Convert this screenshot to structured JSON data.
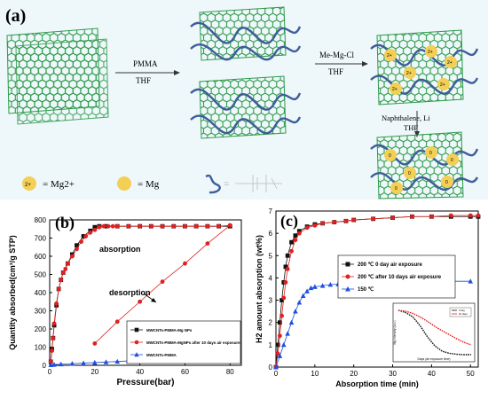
{
  "panel_a": {
    "label": "(a)",
    "step1_top": "PMMA",
    "step1_bottom": "THF",
    "step2_top": "Me-Mg-Cl",
    "step2_bottom": "THF",
    "step3_top": "Naphthalene, Li",
    "step3_bottom": "THF",
    "legend_ion_symbol": "2+",
    "legend_ion_text": "= Mg2+",
    "legend_mg_text": "= Mg",
    "tube_ion_symbol": "2+",
    "tube_metal_symbol": "0"
  },
  "colors": {
    "tube": "#2e9a4a",
    "polymer": "#3d5d9a",
    "ion": "#f3cf55",
    "red": "#e02020",
    "blue": "#1f4fe0",
    "black": "#111111"
  },
  "chart_data": [
    {
      "type": "line",
      "panel_label": "(b)",
      "xlabel": "Pressure(bar)",
      "ylabel": "Quantity absorbed(cm³/g STP)",
      "xlim": [
        0,
        85
      ],
      "ylim": [
        0,
        800
      ],
      "xticks": [
        0,
        20,
        40,
        60,
        80
      ],
      "yticks": [
        0,
        100,
        200,
        300,
        400,
        500,
        600,
        700,
        800
      ],
      "annotations": [
        "absorption",
        "desorption"
      ],
      "legend_position": "bottom-right",
      "series": [
        {
          "name": "MWCNTs-PMMA-Mg NPs",
          "marker": "square",
          "color": "#111111",
          "x": [
            0.5,
            1,
            1.5,
            2,
            3,
            4,
            5,
            6,
            8,
            10,
            12,
            15,
            18,
            20,
            22,
            25,
            30,
            35,
            40,
            45,
            50,
            55,
            60,
            65,
            70,
            75,
            80
          ],
          "y": [
            20,
            90,
            150,
            220,
            330,
            420,
            470,
            510,
            560,
            610,
            660,
            710,
            740,
            760,
            765,
            765,
            765,
            765,
            765,
            765,
            765,
            765,
            765,
            765,
            765,
            765,
            765
          ]
        },
        {
          "name": "MWCNTs-PMMA-MgNPs after 10 days air exposure",
          "marker": "circle",
          "color": "#e02020",
          "x": [
            0.5,
            1,
            1.5,
            2,
            3,
            4,
            5,
            6,
            7,
            8,
            10,
            12,
            14,
            16,
            18,
            20,
            22,
            24,
            26,
            28,
            30,
            35,
            40,
            45,
            50,
            55,
            60,
            65,
            70,
            75,
            80,
            20,
            30,
            40,
            50,
            60,
            70,
            80
          ],
          "y": [
            20,
            80,
            150,
            230,
            340,
            420,
            470,
            510,
            530,
            560,
            600,
            640,
            680,
            710,
            730,
            745,
            760,
            765,
            765,
            765,
            765,
            765,
            765,
            765,
            765,
            765,
            765,
            765,
            765,
            765,
            770,
            120,
            240,
            350,
            460,
            560,
            670,
            770
          ]
        },
        {
          "name": "MWCNTs-PMMA",
          "marker": "triangle",
          "color": "#1f4fe0",
          "x": [
            0.5,
            2,
            5,
            10,
            15,
            20,
            25,
            30,
            35,
            40,
            45,
            50,
            55,
            60,
            65,
            70,
            75,
            80
          ],
          "y": [
            2,
            4,
            6,
            9,
            12,
            15,
            18,
            21,
            24,
            27,
            30,
            33,
            36,
            39,
            42,
            45,
            48,
            55
          ]
        }
      ]
    },
    {
      "type": "line",
      "panel_label": "(c)",
      "xlabel": "Absorption time (min)",
      "ylabel": "H2 amount absorption (wt%)",
      "xlim": [
        0,
        52
      ],
      "ylim": [
        0,
        7
      ],
      "xticks": [
        0,
        10,
        20,
        30,
        40,
        50
      ],
      "yticks": [
        0,
        1,
        2,
        3,
        4,
        5,
        6,
        7
      ],
      "legend_position": "center-right",
      "series": [
        {
          "name": "200 ℃ 0 day air exposure",
          "marker": "square",
          "color": "#111111",
          "x": [
            0,
            0.5,
            1,
            1.5,
            2,
            2.5,
            3,
            4,
            5,
            6,
            8,
            10,
            12,
            15,
            18,
            20,
            25,
            30,
            35,
            40,
            45,
            50,
            52
          ],
          "y": [
            0,
            1.0,
            2.0,
            3.0,
            3.8,
            4.5,
            5.0,
            5.6,
            5.9,
            6.1,
            6.3,
            6.4,
            6.45,
            6.5,
            6.55,
            6.6,
            6.65,
            6.7,
            6.75,
            6.75,
            6.75,
            6.75,
            6.75
          ]
        },
        {
          "name": "200 ℃ after 10 days air exposure",
          "marker": "circle",
          "color": "#e02020",
          "x": [
            0,
            0.5,
            1,
            1.5,
            2,
            2.5,
            3,
            4,
            5,
            6,
            8,
            10,
            12,
            15,
            18,
            20,
            25,
            30,
            35,
            40,
            45,
            50,
            52
          ],
          "y": [
            0,
            0.6,
            1.4,
            2.3,
            3.1,
            3.8,
            4.4,
            5.2,
            5.7,
            6.0,
            6.25,
            6.35,
            6.45,
            6.5,
            6.55,
            6.6,
            6.65,
            6.7,
            6.75,
            6.75,
            6.8,
            6.8,
            6.8
          ]
        },
        {
          "name": "150 ℃",
          "marker": "triangle",
          "color": "#1f4fe0",
          "x": [
            0,
            1,
            2,
            3,
            4,
            5,
            6,
            7,
            8,
            9,
            10,
            12,
            14,
            16,
            18,
            20,
            25,
            30,
            35,
            40,
            45,
            50
          ],
          "y": [
            0,
            0.5,
            1.0,
            1.5,
            2.0,
            2.5,
            2.9,
            3.2,
            3.4,
            3.55,
            3.6,
            3.65,
            3.7,
            3.72,
            3.75,
            3.78,
            3.8,
            3.82,
            3.83,
            3.85,
            3.85,
            3.85
          ]
        }
      ]
    }
  ],
  "inset_c": {
    "ylabel": "Mg intensity (a.u.)",
    "xlabel": "Days (air exposure time)",
    "legend": [
      "0 day",
      "10 days"
    ],
    "series": [
      {
        "name": "black",
        "color": "#111111",
        "x": [
          0,
          1,
          2,
          3,
          4,
          5,
          6,
          7,
          8,
          9,
          10
        ],
        "y": [
          1.0,
          0.95,
          0.85,
          0.65,
          0.4,
          0.2,
          0.08,
          0.03,
          0.01,
          0.0,
          0.0
        ]
      },
      {
        "name": "red",
        "color": "#e02020",
        "x": [
          0,
          1,
          2,
          3,
          4,
          5,
          6,
          7,
          8,
          9,
          10
        ],
        "y": [
          1.0,
          0.98,
          0.93,
          0.85,
          0.75,
          0.64,
          0.54,
          0.45,
          0.36,
          0.28,
          0.22
        ]
      }
    ]
  }
}
